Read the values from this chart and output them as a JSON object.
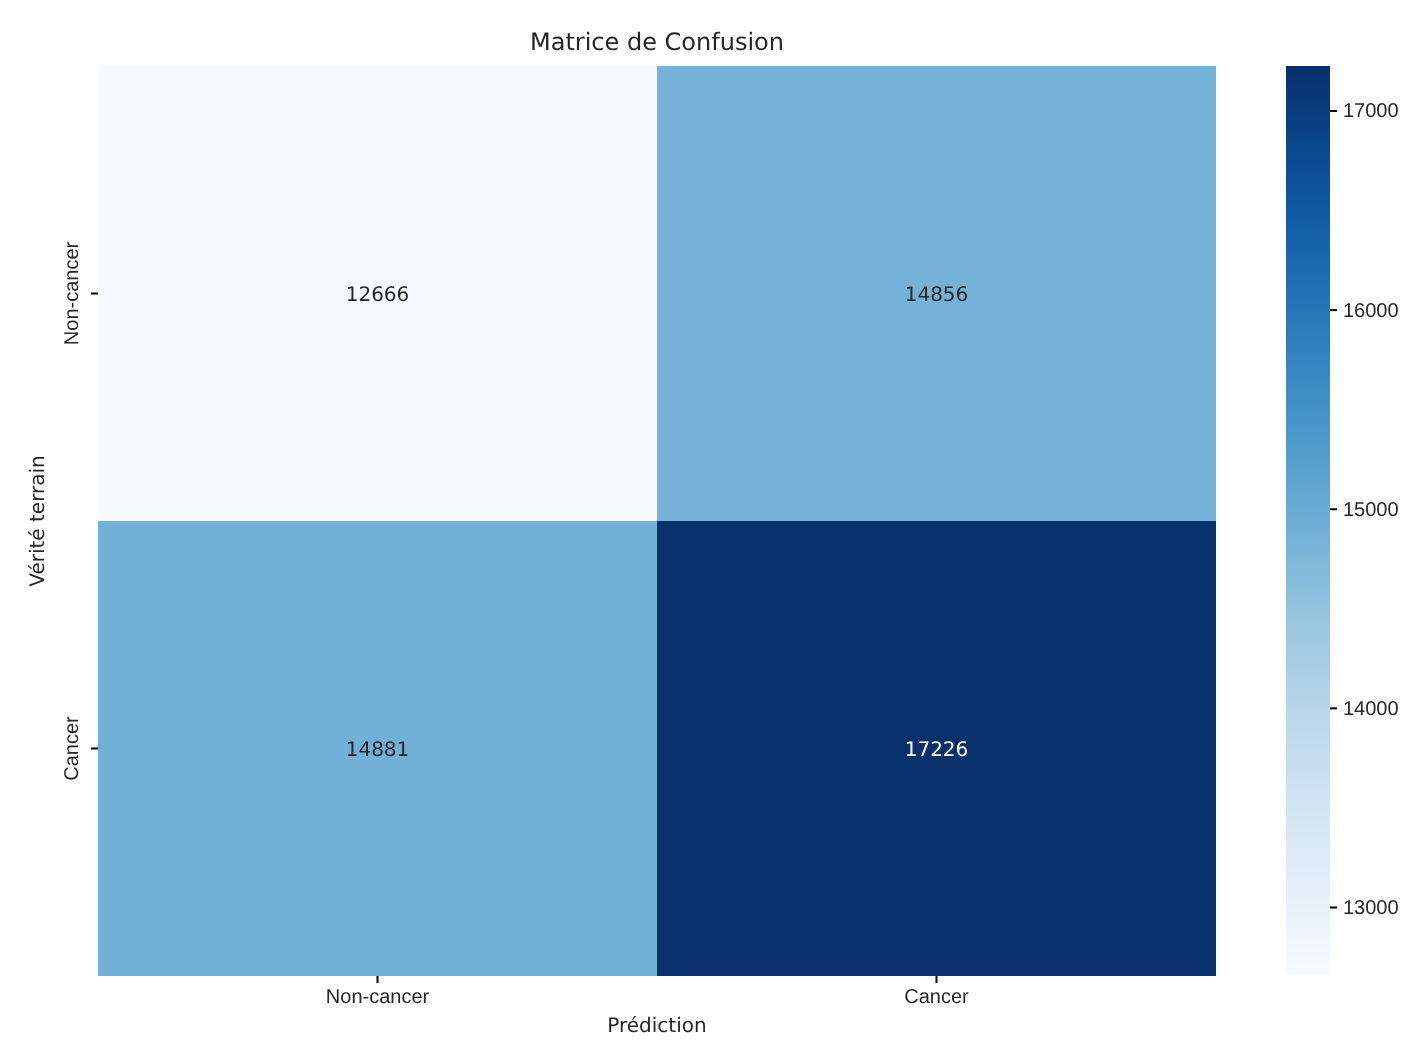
{
  "chart_data": {
    "type": "heatmap",
    "title": "Matrice de Confusion",
    "xlabel": "Prédiction",
    "ylabel": "Vérité terrain",
    "categories": [
      "Non-cancer",
      "Cancer"
    ],
    "y_categories": [
      "Non-cancer",
      "Cancer"
    ],
    "cells": [
      [
        12666,
        14856
      ],
      [
        14881,
        17226
      ]
    ],
    "data_labels": true,
    "clim": [
      12666,
      17226
    ],
    "cticks": [
      13000,
      14000,
      15000,
      16000,
      17000
    ]
  }
}
